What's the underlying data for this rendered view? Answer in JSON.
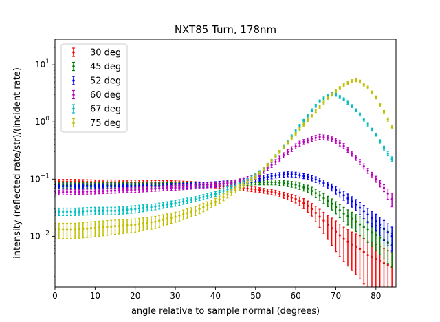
{
  "chart_data": {
    "type": "scatter",
    "title": "NXT85 Turn, 178nm",
    "xlabel": "angle relative to sample normal (degrees)",
    "ylabel": "intensity (reflected rate/str)/(incident rate)",
    "xlim": [
      0,
      85
    ],
    "ylim": [
      0.0013,
      28
    ],
    "yscale": "log",
    "x_ticks": [
      0,
      10,
      20,
      30,
      40,
      50,
      60,
      70,
      80
    ],
    "y_ticks": [
      {
        "value": 0.01,
        "base": "10",
        "exp": "−2"
      },
      {
        "value": 0.1,
        "base": "10",
        "exp": "−1"
      },
      {
        "value": 1,
        "base": "10",
        "exp": "0"
      },
      {
        "value": 10,
        "base": "10",
        "exp": "1"
      }
    ],
    "legend_position": "top-left",
    "error_bars": true,
    "series": [
      {
        "name": "30 deg",
        "color": "#ff0000",
        "x": [
          0,
          5,
          10,
          15,
          20,
          25,
          30,
          35,
          40,
          45,
          50,
          55,
          60,
          62,
          64,
          66,
          68,
          70,
          72,
          74,
          76,
          78,
          80,
          82,
          84
        ],
        "y": [
          0.09,
          0.09,
          0.088,
          0.088,
          0.087,
          0.086,
          0.085,
          0.082,
          0.078,
          0.072,
          0.066,
          0.058,
          0.045,
          0.038,
          0.03,
          0.022,
          0.016,
          0.012,
          0.009,
          0.0072,
          0.006,
          0.0047,
          0.004,
          0.0034,
          0.0029
        ],
        "err_rel": [
          0.1,
          0.1,
          0.1,
          0.1,
          0.1,
          0.1,
          0.1,
          0.1,
          0.1,
          0.1,
          0.1,
          0.1,
          0.15,
          0.2,
          0.25,
          0.35,
          0.45,
          0.55,
          0.6,
          0.65,
          0.7,
          0.75,
          0.8,
          0.8,
          0.8
        ]
      },
      {
        "name": "45 deg",
        "color": "#008000",
        "x": [
          0,
          5,
          10,
          15,
          20,
          25,
          30,
          35,
          40,
          45,
          50,
          55,
          60,
          63,
          66,
          69,
          72,
          75,
          78,
          81,
          84
        ],
        "y": [
          0.078,
          0.078,
          0.078,
          0.078,
          0.078,
          0.078,
          0.079,
          0.08,
          0.081,
          0.084,
          0.088,
          0.088,
          0.08,
          0.068,
          0.052,
          0.037,
          0.025,
          0.018,
          0.013,
          0.0095,
          0.007
        ],
        "err_rel": [
          0.1,
          0.1,
          0.1,
          0.1,
          0.1,
          0.1,
          0.1,
          0.1,
          0.1,
          0.1,
          0.1,
          0.1,
          0.12,
          0.15,
          0.18,
          0.22,
          0.28,
          0.33,
          0.4,
          0.5,
          0.6
        ]
      },
      {
        "name": "52 deg",
        "color": "#0000ff",
        "x": [
          0,
          5,
          10,
          15,
          20,
          25,
          30,
          35,
          40,
          45,
          50,
          55,
          58,
          60,
          63,
          66,
          69,
          72,
          75,
          78,
          81,
          84
        ],
        "y": [
          0.075,
          0.075,
          0.075,
          0.075,
          0.075,
          0.075,
          0.076,
          0.078,
          0.082,
          0.088,
          0.1,
          0.116,
          0.122,
          0.12,
          0.11,
          0.093,
          0.072,
          0.052,
          0.036,
          0.024,
          0.016,
          0.01
        ],
        "err_rel": [
          0.1,
          0.1,
          0.1,
          0.1,
          0.1,
          0.1,
          0.1,
          0.1,
          0.1,
          0.1,
          0.1,
          0.1,
          0.1,
          0.1,
          0.1,
          0.12,
          0.14,
          0.18,
          0.22,
          0.28,
          0.35,
          0.45
        ]
      },
      {
        "name": "60 deg",
        "color": "#bf00bf",
        "x": [
          0,
          5,
          10,
          15,
          20,
          25,
          30,
          35,
          40,
          45,
          50,
          55,
          58,
          61,
          64,
          66,
          68,
          70,
          72,
          74,
          76,
          78,
          80,
          82,
          84.5
        ],
        "y": [
          0.058,
          0.06,
          0.061,
          0.063,
          0.065,
          0.068,
          0.071,
          0.075,
          0.08,
          0.088,
          0.11,
          0.2,
          0.3,
          0.42,
          0.51,
          0.55,
          0.53,
          0.47,
          0.38,
          0.28,
          0.2,
          0.14,
          0.1,
          0.07,
          0.04
        ],
        "err_rel": [
          0.1,
          0.1,
          0.1,
          0.1,
          0.1,
          0.1,
          0.1,
          0.1,
          0.1,
          0.1,
          0.1,
          0.1,
          0.1,
          0.1,
          0.1,
          0.1,
          0.1,
          0.1,
          0.1,
          0.1,
          0.1,
          0.1,
          0.12,
          0.14,
          0.3
        ]
      },
      {
        "name": "67 deg",
        "color": "#00bfbf",
        "x": [
          0,
          5,
          10,
          15,
          20,
          25,
          30,
          35,
          40,
          45,
          48,
          50,
          52,
          54,
          56,
          58,
          60,
          62,
          64,
          66,
          68,
          69,
          70,
          72,
          74,
          76,
          78,
          80,
          82,
          84.5
        ],
        "y": [
          0.027,
          0.027,
          0.028,
          0.028,
          0.03,
          0.033,
          0.038,
          0.045,
          0.055,
          0.075,
          0.095,
          0.115,
          0.15,
          0.21,
          0.3,
          0.45,
          0.7,
          1.05,
          1.6,
          2.3,
          2.9,
          3.1,
          3.0,
          2.5,
          1.9,
          1.35,
          0.9,
          0.6,
          0.35,
          0.2
        ],
        "err_rel": [
          0.15,
          0.15,
          0.15,
          0.15,
          0.15,
          0.12,
          0.12,
          0.1,
          0.1,
          0.1,
          0.08,
          0.08,
          0.06,
          0.06,
          0.06,
          0.06,
          0.06,
          0.06,
          0.06,
          0.06,
          0.06,
          0.06,
          0.06,
          0.06,
          0.06,
          0.06,
          0.06,
          0.06,
          0.08,
          0.1
        ]
      },
      {
        "name": "75 deg",
        "color": "#bfbf00",
        "x": [
          0,
          5,
          10,
          15,
          20,
          25,
          30,
          35,
          40,
          45,
          50,
          52,
          54,
          56,
          58,
          60,
          62,
          64,
          66,
          68,
          70,
          72,
          74,
          75,
          76,
          78,
          80,
          82,
          84.5
        ],
        "y": [
          0.013,
          0.013,
          0.014,
          0.015,
          0.016,
          0.018,
          0.022,
          0.028,
          0.04,
          0.065,
          0.11,
          0.15,
          0.21,
          0.3,
          0.43,
          0.62,
          0.9,
          1.3,
          1.85,
          2.6,
          3.5,
          4.4,
          5.2,
          5.4,
          5.1,
          4.0,
          2.7,
          1.5,
          0.7
        ],
        "err_rel": [
          0.3,
          0.3,
          0.3,
          0.28,
          0.26,
          0.24,
          0.2,
          0.18,
          0.15,
          0.12,
          0.08,
          0.07,
          0.06,
          0.06,
          0.06,
          0.06,
          0.06,
          0.06,
          0.06,
          0.06,
          0.06,
          0.06,
          0.06,
          0.06,
          0.06,
          0.06,
          0.06,
          0.06,
          0.08
        ]
      }
    ]
  }
}
